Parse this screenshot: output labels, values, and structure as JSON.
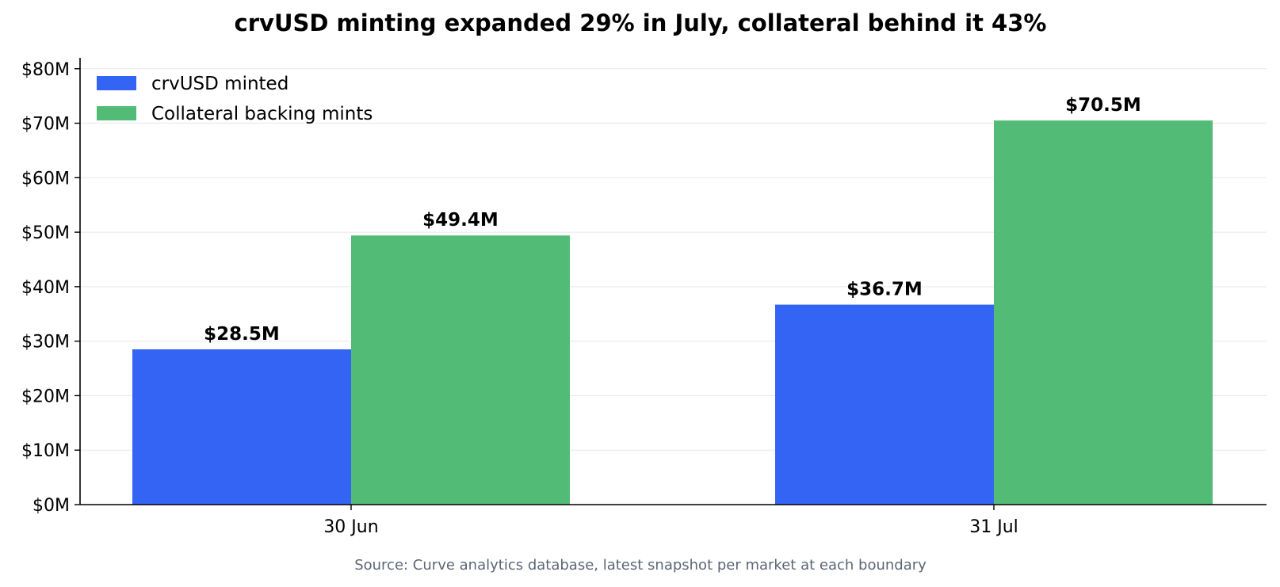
{
  "chart_data": {
    "type": "bar",
    "title": "crvUSD minting expanded 29% in July, collateral behind it 43%",
    "source": "Source: Curve analytics database, latest snapshot per market at each boundary",
    "categories": [
      "30 Jun",
      "31 Jul"
    ],
    "series": [
      {
        "name": "crvUSD minted",
        "color": "#3464f4",
        "values": [
          28.5,
          36.7
        ],
        "labels": [
          "$28.5M",
          "$36.7M"
        ]
      },
      {
        "name": "Collateral backing mints",
        "color": "#52bc76",
        "values": [
          49.4,
          70.5
        ],
        "labels": [
          "$49.4M",
          "$70.5M"
        ]
      }
    ],
    "y_unit": "$M",
    "ylim": [
      0,
      82
    ],
    "yticks": [
      0,
      10,
      20,
      30,
      40,
      50,
      60,
      70,
      80
    ],
    "ytick_labels": [
      "$0M",
      "$10M",
      "$20M",
      "$30M",
      "$40M",
      "$50M",
      "$60M",
      "$70M",
      "$80M"
    ],
    "xlabel": "",
    "ylabel": "",
    "grid": "y",
    "legend_position": "top-left"
  }
}
